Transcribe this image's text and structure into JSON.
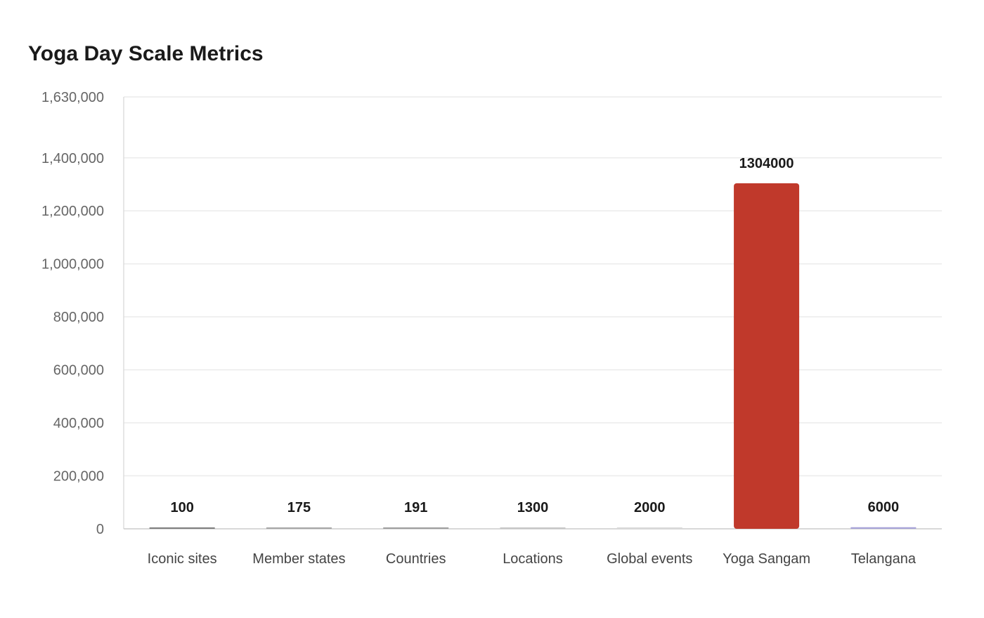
{
  "chart_data": {
    "type": "bar",
    "title": "Yoga Day Scale Metrics",
    "xlabel": "",
    "ylabel": "",
    "categories": [
      "Iconic sites",
      "Member states",
      "Countries",
      "Locations",
      "Global events",
      "Yoga Sangam",
      "Telangana"
    ],
    "values": [
      100,
      175,
      191,
      1300,
      2000,
      1304000,
      6000
    ],
    "value_labels": [
      "100",
      "175",
      "191",
      "1300",
      "2000",
      "1304000",
      "6000"
    ],
    "colors": [
      "#7f7f7f",
      "#a6a6a6",
      "#9e9e9e",
      "#c7c7c7",
      "#d9d9d9",
      "#c0392b",
      "#a7a3d8"
    ],
    "ylim": [
      0,
      1630000
    ],
    "yticks": [
      0,
      200000,
      400000,
      600000,
      800000,
      1000000,
      1200000,
      1400000,
      1630000
    ],
    "ytick_labels": [
      "0",
      "200,000",
      "400,000",
      "600,000",
      "800,000",
      "1,000,000",
      "1,200,000",
      "1,400,000",
      "1,630,000"
    ],
    "grid": true,
    "legend": "none"
  }
}
